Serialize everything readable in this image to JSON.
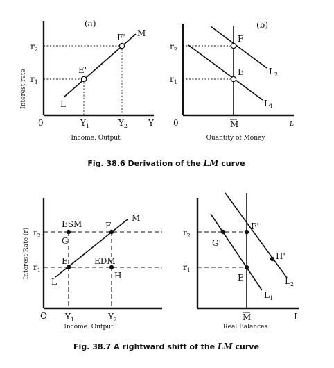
{
  "fig1": {
    "left": {
      "panel_label": "(a)",
      "ylabel": "Interest rate",
      "xlabel": "Income. Output",
      "origin": "0",
      "r1": "r",
      "r1_sub": "1",
      "r2": "r",
      "r2_sub": "2",
      "y1": "Y",
      "y1_sub": "1",
      "y2": "Y",
      "y2_sub": "2",
      "yaxis_end": "Y",
      "pt_e": "E'",
      "pt_f": "F'",
      "curve_l": "L",
      "curve_m": "M"
    },
    "right": {
      "panel_label": "(b)",
      "xlabel": "Quantity of Money",
      "origin": "0",
      "r1": "r",
      "r1_sub": "1",
      "r2": "r",
      "r2_sub": "2",
      "mbar": "M",
      "axis_l": "L",
      "pt_e": "E",
      "pt_f": "F",
      "curve_l1": "L",
      "curve_l1_sub": "1",
      "curve_l2": "L",
      "curve_l2_sub": "2"
    },
    "caption_prefix": "Fig. 38.6",
    "caption_text": " Derivation of the ",
    "caption_lm": "LM",
    "caption_suffix": " curve"
  },
  "fig2": {
    "left": {
      "ylabel": "Interest Rate (r)",
      "xlabel": "Income. Output",
      "origin": "O",
      "r1": "r",
      "r1_sub": "1",
      "r2": "r",
      "r2_sub": "2",
      "y1": "Y",
      "y1_sub": "1",
      "y2": "Y",
      "y2_sub": "2",
      "esm": "ESM",
      "edm": "EDM",
      "pt_e": "E",
      "pt_f": "F",
      "pt_g": "G",
      "pt_h": "H",
      "curve_l": "L",
      "curve_m": "M"
    },
    "right": {
      "xlabel": "Real Balances",
      "r1": "r",
      "r1_sub": "1",
      "r2": "r",
      "r2_sub": "2",
      "mbar": "M",
      "axis_l": "L",
      "pt_e": "E'",
      "pt_f": "F'",
      "pt_g": "G'",
      "pt_h": "H'",
      "curve_l1": "L",
      "curve_l1_sub": "1",
      "curve_l2": "L",
      "curve_l2_sub": "2"
    },
    "caption_prefix": "Fig. 38.7",
    "caption_text": " A rightward shift of the ",
    "caption_lm": "LM",
    "caption_suffix": " curve"
  }
}
